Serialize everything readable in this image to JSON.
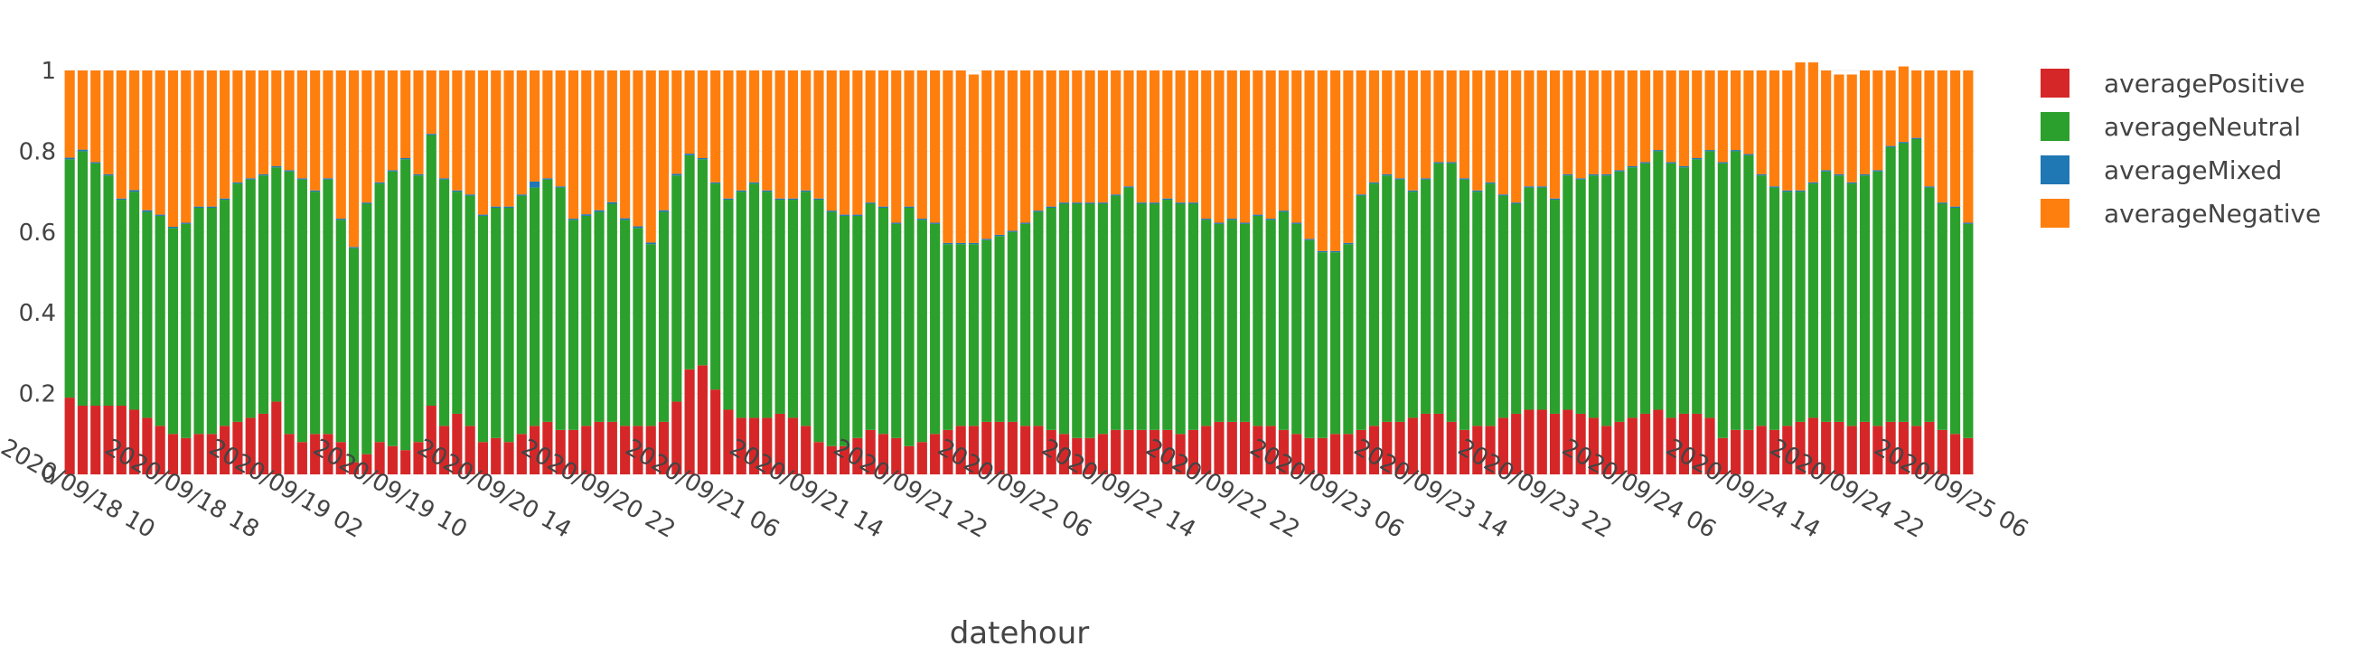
{
  "chart_data": {
    "type": "bar",
    "barmode": "stack",
    "xlabel": "datehour",
    "ylim": [
      0,
      1
    ],
    "yticks": [
      "0",
      "0.2",
      "0.4",
      "0.6",
      "0.8",
      "1"
    ],
    "xticks": [
      "2020/09/18 10",
      "2020/09/18 18",
      "2020/09/19 02",
      "2020/09/19 10",
      "2020/09/20 14",
      "2020/09/20 22",
      "2020/09/21 06",
      "2020/09/21 14",
      "2020/09/21 22",
      "2020/09/22 06",
      "2020/09/22 14",
      "2020/09/22 22",
      "2020/09/23 06",
      "2020/09/23 14",
      "2020/09/23 22",
      "2020/09/24 06",
      "2020/09/24 14",
      "2020/09/24 22",
      "2020/09/25 06"
    ],
    "series": [
      {
        "name": "averagePositive",
        "color": "#d62728",
        "values": [
          0.19,
          0.17,
          0.17,
          0.17,
          0.17,
          0.16,
          0.14,
          0.12,
          0.1,
          0.09,
          0.1,
          0.1,
          0.12,
          0.13,
          0.14,
          0.15,
          0.18,
          0.1,
          0.08,
          0.1,
          0.1,
          0.08,
          0.03,
          0.05,
          0.08,
          0.07,
          0.06,
          0.08,
          0.17,
          0.12,
          0.15,
          0.12,
          0.08,
          0.09,
          0.08,
          0.1,
          0.12,
          0.13,
          0.11,
          0.11,
          0.12,
          0.13,
          0.13,
          0.12,
          0.12,
          0.12,
          0.13,
          0.18,
          0.26,
          0.27,
          0.21,
          0.16,
          0.14,
          0.14,
          0.14,
          0.15,
          0.14,
          0.12,
          0.08,
          0.07,
          0.07,
          0.09,
          0.11,
          0.1,
          0.09,
          0.07,
          0.08,
          0.1,
          0.11,
          0.12,
          0.12,
          0.13,
          0.13,
          0.13,
          0.12,
          0.12,
          0.11,
          0.1,
          0.09,
          0.09,
          0.1,
          0.11,
          0.11,
          0.11,
          0.11,
          0.11,
          0.1,
          0.11,
          0.12,
          0.13,
          0.13,
          0.13,
          0.12,
          0.12,
          0.11,
          0.1,
          0.09,
          0.09,
          0.1,
          0.1,
          0.11,
          0.12,
          0.13,
          0.13,
          0.14,
          0.15,
          0.15,
          0.13,
          0.11,
          0.12,
          0.12,
          0.14,
          0.15,
          0.16,
          0.16,
          0.15,
          0.16,
          0.15,
          0.14,
          0.12,
          0.13,
          0.14,
          0.15,
          0.16,
          0.14,
          0.15,
          0.15,
          0.14,
          0.09,
          0.11,
          0.11,
          0.12,
          0.11,
          0.12,
          0.13,
          0.14,
          0.13,
          0.13,
          0.12,
          0.13,
          0.12,
          0.13,
          0.13,
          0.12,
          0.13,
          0.11,
          0.1,
          0.09
        ]
      },
      {
        "name": "averageNeutral",
        "color": "#2ca02c",
        "values": [
          0.59,
          0.63,
          0.6,
          0.57,
          0.51,
          0.54,
          0.51,
          0.52,
          0.51,
          0.53,
          0.56,
          0.56,
          0.56,
          0.59,
          0.59,
          0.59,
          0.58,
          0.65,
          0.65,
          0.6,
          0.63,
          0.55,
          0.53,
          0.62,
          0.64,
          0.68,
          0.72,
          0.66,
          0.67,
          0.61,
          0.55,
          0.57,
          0.56,
          0.57,
          0.58,
          0.59,
          0.59,
          0.6,
          0.6,
          0.52,
          0.52,
          0.52,
          0.54,
          0.51,
          0.49,
          0.45,
          0.52,
          0.56,
          0.53,
          0.51,
          0.51,
          0.52,
          0.56,
          0.58,
          0.56,
          0.53,
          0.54,
          0.58,
          0.6,
          0.58,
          0.57,
          0.55,
          0.56,
          0.56,
          0.53,
          0.59,
          0.55,
          0.52,
          0.46,
          0.45,
          0.45,
          0.45,
          0.46,
          0.47,
          0.5,
          0.53,
          0.55,
          0.57,
          0.58,
          0.58,
          0.57,
          0.58,
          0.6,
          0.56,
          0.56,
          0.57,
          0.57,
          0.56,
          0.51,
          0.49,
          0.5,
          0.49,
          0.52,
          0.51,
          0.54,
          0.52,
          0.49,
          0.46,
          0.45,
          0.47,
          0.58,
          0.6,
          0.61,
          0.6,
          0.56,
          0.58,
          0.62,
          0.64,
          0.62,
          0.58,
          0.6,
          0.55,
          0.52,
          0.55,
          0.55,
          0.53,
          0.58,
          0.58,
          0.6,
          0.62,
          0.62,
          0.62,
          0.62,
          0.64,
          0.63,
          0.61,
          0.63,
          0.66,
          0.68,
          0.69,
          0.68,
          0.62,
          0.6,
          0.58,
          0.57,
          0.58,
          0.62,
          0.61,
          0.6,
          0.61,
          0.63,
          0.68,
          0.69,
          0.71,
          0.58,
          0.56,
          0.56,
          0.53
        ]
      },
      {
        "name": "averageMixed",
        "color": "#1f77b4",
        "values": [
          0.004,
          0.004,
          0.003,
          0.003,
          0.003,
          0.004,
          0.004,
          0.003,
          0.003,
          0.003,
          0.003,
          0.003,
          0.003,
          0.003,
          0.003,
          0.003,
          0.003,
          0.003,
          0.003,
          0.003,
          0.003,
          0.003,
          0.003,
          0.003,
          0.003,
          0.003,
          0.003,
          0.003,
          0.003,
          0.003,
          0.003,
          0.003,
          0.003,
          0.003,
          0.003,
          0.003,
          0.015,
          0.003,
          0.003,
          0.003,
          0.004,
          0.004,
          0.004,
          0.004,
          0.004,
          0.004,
          0.004,
          0.004,
          0.004,
          0.003,
          0.003,
          0.003,
          0.003,
          0.003,
          0.003,
          0.003,
          0.003,
          0.003,
          0.003,
          0.003,
          0.003,
          0.003,
          0.003,
          0.003,
          0.003,
          0.003,
          0.003,
          0.003,
          0.003,
          0.003,
          0.003,
          0.003,
          0.003,
          0.003,
          0.003,
          0.003,
          0.003,
          0.003,
          0.003,
          0.003,
          0.003,
          0.003,
          0.003,
          0.003,
          0.003,
          0.003,
          0.003,
          0.003,
          0.003,
          0.003,
          0.003,
          0.003,
          0.003,
          0.003,
          0.003,
          0.003,
          0.003,
          0.003,
          0.003,
          0.003,
          0.003,
          0.003,
          0.003,
          0.003,
          0.003,
          0.003,
          0.003,
          0.003,
          0.003,
          0.003,
          0.003,
          0.003,
          0.003,
          0.003,
          0.003,
          0.003,
          0.003,
          0.003,
          0.003,
          0.003,
          0.003,
          0.003,
          0.003,
          0.003,
          0.003,
          0.003,
          0.003,
          0.003,
          0.003,
          0.003,
          0.003,
          0.003,
          0.003,
          0.003,
          0.003,
          0.003,
          0.003,
          0.003,
          0.003,
          0.003,
          0.003,
          0.003,
          0.003,
          0.003,
          0.003,
          0.003,
          0.003,
          0.003
        ]
      },
      {
        "name": "averageNegative",
        "color": "#ff7f0e",
        "values": [
          0.216,
          0.196,
          0.227,
          0.257,
          0.317,
          0.296,
          0.346,
          0.357,
          0.387,
          0.377,
          0.337,
          0.337,
          0.317,
          0.277,
          0.267,
          0.257,
          0.237,
          0.247,
          0.267,
          0.297,
          0.267,
          0.367,
          0.437,
          0.327,
          0.277,
          0.247,
          0.217,
          0.257,
          0.157,
          0.267,
          0.297,
          0.307,
          0.357,
          0.337,
          0.337,
          0.307,
          0.275,
          0.267,
          0.287,
          0.367,
          0.356,
          0.346,
          0.326,
          0.366,
          0.386,
          0.426,
          0.346,
          0.256,
          0.206,
          0.217,
          0.277,
          0.317,
          0.297,
          0.277,
          0.297,
          0.317,
          0.317,
          0.297,
          0.317,
          0.347,
          0.357,
          0.357,
          0.327,
          0.337,
          0.377,
          0.337,
          0.367,
          0.377,
          0.427,
          0.427,
          0.417,
          0.417,
          0.407,
          0.397,
          0.377,
          0.347,
          0.337,
          0.327,
          0.327,
          0.327,
          0.327,
          0.307,
          0.287,
          0.327,
          0.327,
          0.317,
          0.327,
          0.327,
          0.367,
          0.377,
          0.367,
          0.377,
          0.357,
          0.367,
          0.347,
          0.377,
          0.417,
          0.447,
          0.447,
          0.427,
          0.307,
          0.277,
          0.257,
          0.267,
          0.297,
          0.267,
          0.227,
          0.227,
          0.267,
          0.297,
          0.277,
          0.307,
          0.327,
          0.287,
          0.287,
          0.317,
          0.257,
          0.267,
          0.257,
          0.257,
          0.247,
          0.237,
          0.227,
          0.197,
          0.227,
          0.237,
          0.217,
          0.197,
          0.227,
          0.197,
          0.207,
          0.257,
          0.287,
          0.297,
          0.317,
          0.297,
          0.247,
          0.247,
          0.267,
          0.257,
          0.247,
          0.187,
          0.187,
          0.167,
          0.287,
          0.327,
          0.337,
          0.377
        ]
      }
    ],
    "legend_position": "right"
  }
}
